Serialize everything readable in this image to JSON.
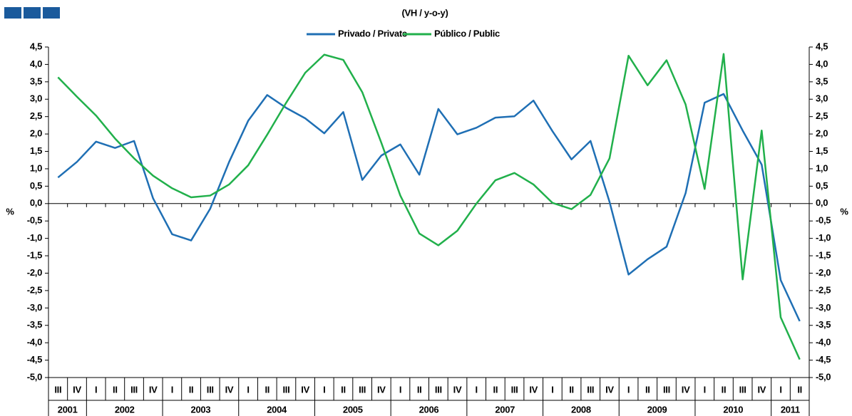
{
  "chart_data": {
    "type": "line",
    "title": "(VH / y-o-y)",
    "ylabel": "%",
    "y2label": "%",
    "categories": [
      "III",
      "IV",
      "I",
      "II",
      "III",
      "IV",
      "I",
      "II",
      "III",
      "IV",
      "I",
      "II",
      "III",
      "IV",
      "I",
      "II",
      "III",
      "IV",
      "I",
      "II",
      "III",
      "IV",
      "I",
      "II",
      "III",
      "IV",
      "I",
      "II",
      "III",
      "IV",
      "I",
      "II",
      "III",
      "IV",
      "I",
      "II",
      "III",
      "IV",
      "I",
      "II"
    ],
    "years": [
      "2001",
      "2002",
      "2003",
      "2004",
      "2005",
      "2006",
      "2007",
      "2008",
      "2009",
      "2010",
      "2011"
    ],
    "series": [
      {
        "name": "Privado / Private",
        "color": "#1f6fb4",
        "values": [
          0.75,
          1.2,
          1.78,
          1.6,
          1.8,
          0.15,
          -0.88,
          -1.06,
          -0.15,
          1.2,
          2.38,
          3.12,
          2.75,
          2.45,
          2.02,
          2.63,
          0.68,
          1.38,
          1.7,
          0.83,
          2.72,
          1.99,
          2.18,
          2.47,
          2.51,
          2.96,
          2.08,
          1.27,
          1.8,
          0.05,
          -2.04,
          -1.6,
          -1.24,
          0.3,
          2.9,
          3.15,
          2.1,
          1.12,
          -2.2,
          -3.38
        ]
      },
      {
        "name": "Público / Public",
        "color": "#21b04b",
        "values": [
          3.63,
          3.07,
          2.53,
          1.87,
          1.3,
          0.8,
          0.44,
          0.18,
          0.23,
          0.55,
          1.1,
          1.98,
          2.9,
          3.76,
          4.28,
          4.13,
          3.2,
          1.75,
          0.23,
          -0.86,
          -1.2,
          -0.78,
          0.0,
          0.67,
          0.88,
          0.55,
          0.02,
          -0.16,
          0.25,
          1.3,
          4.25,
          3.4,
          4.12,
          2.85,
          0.42,
          4.3,
          -2.18,
          2.1,
          -3.27,
          -4.48
        ]
      }
    ],
    "ylim": [
      -5,
      4.5
    ],
    "yticks": [
      {
        "value": -5,
        "label": "-5,0"
      },
      {
        "value": -4.5,
        "label": "-4,5"
      },
      {
        "value": -4,
        "label": "-4,0"
      },
      {
        "value": -3.5,
        "label": "-3,5"
      },
      {
        "value": -3,
        "label": "-3,0"
      },
      {
        "value": -2.5,
        "label": "-2,5"
      },
      {
        "value": -2,
        "label": "-2,0"
      },
      {
        "value": -1.5,
        "label": "-1,5"
      },
      {
        "value": -1,
        "label": "-1,0"
      },
      {
        "value": -0.5,
        "label": "-0,5"
      },
      {
        "value": 0,
        "label": "0,0"
      },
      {
        "value": 0.5,
        "label": "0,5"
      },
      {
        "value": 1,
        "label": "1,0"
      },
      {
        "value": 1.5,
        "label": "1,5"
      },
      {
        "value": 2,
        "label": "2,0"
      },
      {
        "value": 2.5,
        "label": "2,5"
      },
      {
        "value": 3,
        "label": "3,0"
      },
      {
        "value": 3.5,
        "label": "3,5"
      },
      {
        "value": 4,
        "label": "4,0"
      },
      {
        "value": 4.5,
        "label": "4,5"
      }
    ],
    "y2lim": [
      -5,
      4.5
    ],
    "y2ticks": [
      {
        "value": -5,
        "label": "-5,0"
      },
      {
        "value": -4.5,
        "label": "-4,5"
      },
      {
        "value": -4,
        "label": "-4,0"
      },
      {
        "value": -3.5,
        "label": "-3,5"
      },
      {
        "value": -3,
        "label": "-3,0"
      },
      {
        "value": -2.5,
        "label": "-2,5"
      },
      {
        "value": -2,
        "label": "-2,0"
      },
      {
        "value": -1.5,
        "label": "-1,5"
      },
      {
        "value": -1,
        "label": "-1,0"
      },
      {
        "value": -0.5,
        "label": "-0,5"
      },
      {
        "value": 0,
        "label": "0,0"
      },
      {
        "value": 0.5,
        "label": "0,5"
      },
      {
        "value": 1,
        "label": "1,0"
      },
      {
        "value": 1.5,
        "label": "1,5"
      },
      {
        "value": 2,
        "label": "2,0"
      },
      {
        "value": 2.5,
        "label": "2,5"
      },
      {
        "value": 3,
        "label": "3,0"
      },
      {
        "value": 3.5,
        "label": "3,5"
      },
      {
        "value": 4,
        "label": "4,0"
      },
      {
        "value": 4.5,
        "label": "4,5"
      }
    ],
    "grid": false,
    "legend": "top"
  }
}
